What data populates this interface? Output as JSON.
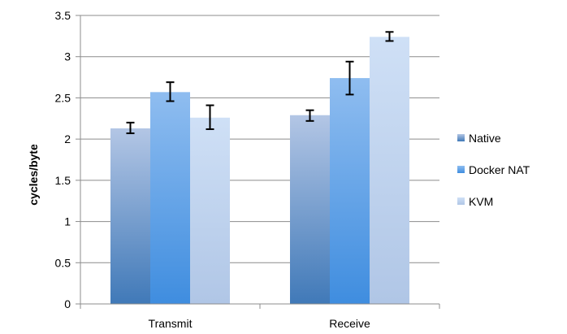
{
  "chart_data": {
    "type": "bar",
    "title": "",
    "xlabel": "",
    "ylabel": "cycles/byte",
    "ylim": [
      0,
      3.5
    ],
    "ytick_step": 0.5,
    "categories": [
      "Transmit",
      "Receive"
    ],
    "series": [
      {
        "name": "Native",
        "values": [
          2.13,
          2.29
        ],
        "err_low": [
          2.07,
          2.22
        ],
        "err_high": [
          2.2,
          2.35
        ]
      },
      {
        "name": "Docker NAT",
        "values": [
          2.57,
          2.74
        ],
        "err_low": [
          2.46,
          2.54
        ],
        "err_high": [
          2.69,
          2.94
        ]
      },
      {
        "name": "KVM",
        "values": [
          2.26,
          3.24
        ],
        "err_low": [
          2.12,
          3.19
        ],
        "err_high": [
          2.41,
          3.3
        ]
      }
    ],
    "grid": true,
    "legend_position": "right",
    "colors": {
      "Native": {
        "top": "#b3c6e5",
        "bottom": "#4079b8"
      },
      "Docker NAT": {
        "top": "#8fbdf0",
        "bottom": "#3f8ddf"
      },
      "KVM": {
        "top": "#cfe0f6",
        "bottom": "#b0c6e6"
      }
    }
  }
}
